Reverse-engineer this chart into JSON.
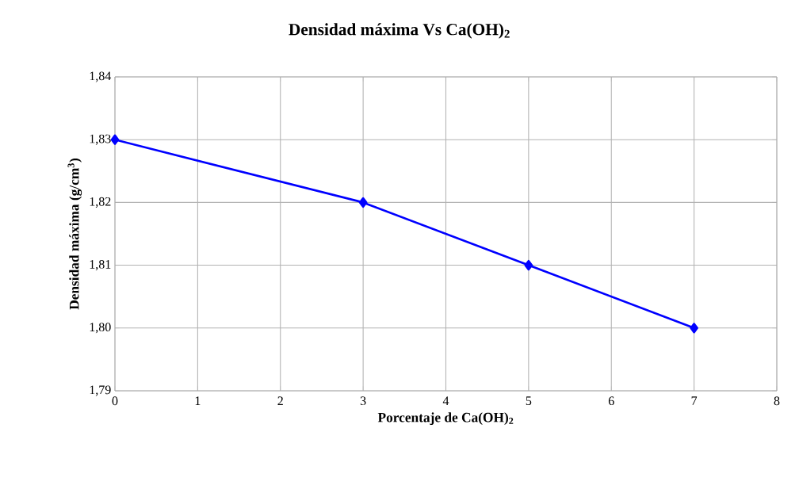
{
  "chart_data": {
    "type": "line",
    "title": "Densidad máxima Vs Ca(OH)$_{2}$",
    "xlabel": "Porcentaje de Ca(OH)$_{2}$",
    "ylabel": "Densidad máxima (g/cm$^{3}$)",
    "x": [
      0,
      3,
      5,
      7
    ],
    "series": [
      {
        "color": "#0000ff",
        "values": [
          1.83,
          1.82,
          1.81,
          1.8
        ]
      }
    ],
    "xlim": [
      0,
      8
    ],
    "xticks": [
      0,
      1,
      2,
      3,
      4,
      5,
      6,
      7,
      8
    ],
    "ylim": [
      1.79,
      1.84
    ],
    "yticks": [
      {
        "value": 1.79,
        "label": "1,79"
      },
      {
        "value": 1.8,
        "label": "1,80"
      },
      {
        "value": 1.81,
        "label": "1,81"
      },
      {
        "value": 1.82,
        "label": "1,82"
      },
      {
        "value": 1.83,
        "label": "1,83"
      },
      {
        "value": 1.84,
        "label": "1,84"
      }
    ],
    "grid": true,
    "marker": "diamond",
    "line_style": "solid"
  }
}
